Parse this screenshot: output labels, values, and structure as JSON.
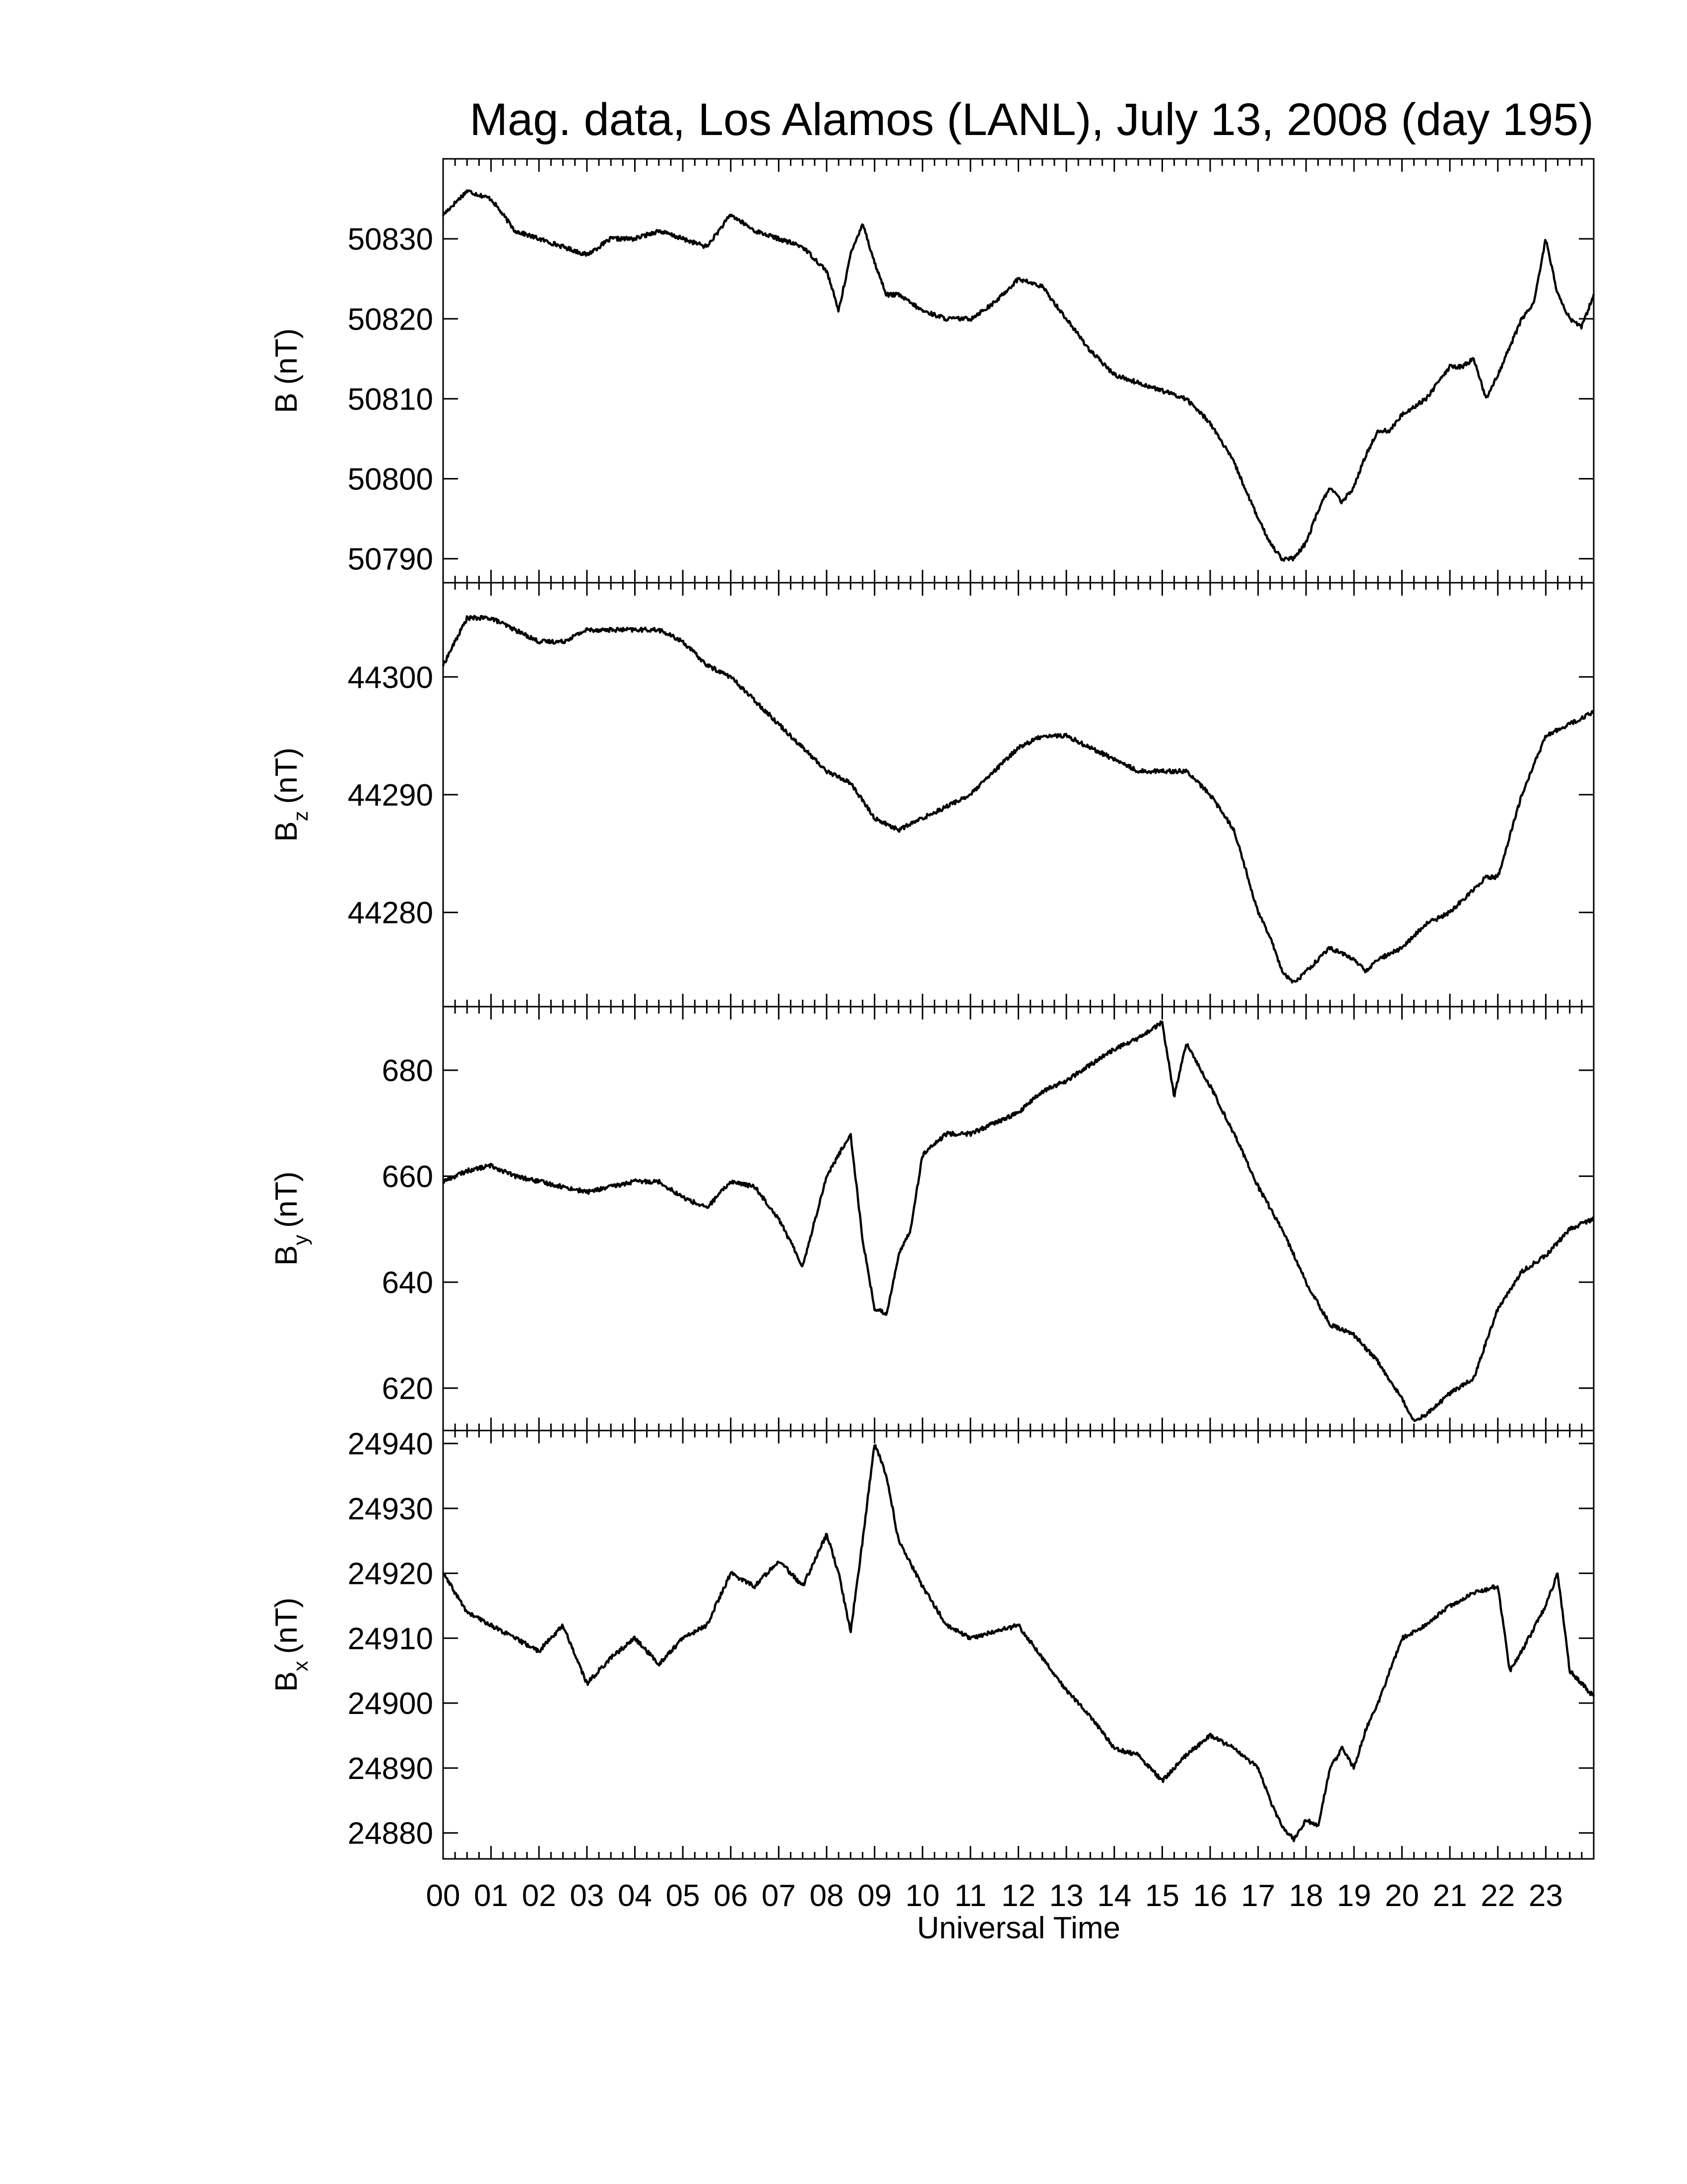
{
  "chart_data": {
    "type": "line",
    "title": "Mag. data, Los Alamos (LANL), July 13, 2008 (day 195)",
    "xlabel": "Universal Time",
    "x_tick_labels": [
      "00",
      "01",
      "02",
      "03",
      "04",
      "05",
      "06",
      "07",
      "08",
      "09",
      "10",
      "11",
      "12",
      "13",
      "14",
      "15",
      "16",
      "17",
      "18",
      "19",
      "20",
      "21",
      "22",
      "23"
    ],
    "xlim": [
      0,
      24
    ],
    "grid": false,
    "legend": "none",
    "line_color": "#000000",
    "panels": [
      {
        "ylabel_main": "B",
        "ylabel_sub": "",
        "ylabel_unit": "(nT)",
        "ylim": [
          50787,
          50840
        ],
        "yticks": [
          50790,
          50800,
          50810,
          50820,
          50830
        ],
        "series": {
          "x": [
            0,
            0.5,
            1,
            1.5,
            2,
            2.5,
            3,
            3.5,
            4,
            4.5,
            5,
            5.5,
            6,
            6.5,
            7,
            7.5,
            8,
            8.25,
            8.5,
            8.75,
            9,
            9.25,
            9.5,
            10,
            10.5,
            11,
            11.5,
            12,
            12.5,
            13,
            13.5,
            14,
            14.5,
            15,
            15.5,
            16,
            16.5,
            17,
            17.25,
            17.5,
            17.75,
            18,
            18.25,
            18.5,
            18.75,
            19,
            19.25,
            19.5,
            19.75,
            20,
            20.5,
            21,
            21.25,
            21.5,
            21.75,
            22,
            22.5,
            22.75,
            23,
            23.25,
            23.5,
            23.75,
            24
          ],
          "y": [
            50833,
            50836,
            50835,
            50831,
            50830,
            50829,
            50828,
            50830,
            50830,
            50831,
            50830,
            50829,
            50833,
            50831,
            50830,
            50829,
            50826,
            50821,
            50828,
            50832,
            50827,
            50823,
            50823,
            50821,
            50820,
            50820,
            50822,
            50825,
            50824,
            50820,
            50816,
            50813,
            50812,
            50811,
            50810,
            50807,
            50802,
            50795,
            50792,
            50790,
            50790,
            50792,
            50796,
            50799,
            50797,
            50799,
            50803,
            50806,
            50806,
            50808,
            50810,
            50814,
            50814,
            50815,
            50810,
            50813,
            50820,
            50822,
            50830,
            50823,
            50820,
            50819,
            50823
          ]
        }
      },
      {
        "ylabel_main": "B",
        "ylabel_sub": "z",
        "ylabel_unit": "(nT)",
        "ylim": [
          44272,
          44308
        ],
        "yticks": [
          44280,
          44290,
          44300
        ],
        "series": {
          "x": [
            0,
            0.5,
            1,
            1.5,
            2,
            2.5,
            3,
            3.5,
            4,
            4.5,
            5,
            5.5,
            6,
            6.5,
            7,
            7.5,
            8,
            8.5,
            9,
            9.5,
            10,
            10.5,
            11,
            11.5,
            12,
            12.5,
            13,
            13.5,
            14,
            14.5,
            15,
            15.5,
            16,
            16.5,
            17,
            17.25,
            17.5,
            17.75,
            18,
            18.25,
            18.5,
            19,
            19.25,
            19.5,
            20,
            20.5,
            21,
            21.25,
            21.5,
            21.75,
            22,
            22.5,
            23,
            23.5,
            24
          ],
          "y": [
            44301,
            44305,
            44305,
            44304,
            44303,
            44303,
            44304,
            44304,
            44304,
            44304,
            44303,
            44301,
            44300,
            44298,
            44296,
            44294,
            44292,
            44291,
            44288,
            44287,
            44288,
            44289,
            44290,
            44292,
            44294,
            44295,
            44295,
            44294,
            44293,
            44292,
            44292,
            44292,
            44290,
            44287,
            44280,
            44278,
            44275,
            44274,
            44275,
            44276,
            44277,
            44276,
            44275,
            44276,
            44277,
            44279,
            44280,
            44281,
            44282,
            44283,
            44283,
            44290,
            44295,
            44296,
            44297
          ]
        }
      },
      {
        "ylabel_main": "B",
        "ylabel_sub": "y",
        "ylabel_unit": "(nT)",
        "ylim": [
          612,
          692
        ],
        "yticks": [
          620,
          640,
          660,
          680
        ],
        "series": {
          "x": [
            0,
            0.5,
            1,
            1.5,
            2,
            2.5,
            3,
            3.5,
            4,
            4.5,
            5,
            5.5,
            6,
            6.5,
            7,
            7.5,
            8,
            8.25,
            8.5,
            8.75,
            9,
            9.25,
            9.5,
            9.75,
            10,
            10.5,
            11,
            11.5,
            12,
            12.5,
            13,
            13.5,
            14,
            14.5,
            15,
            15.25,
            15.5,
            16,
            16.5,
            17,
            17.5,
            18,
            18.5,
            19,
            19.5,
            20,
            20.25,
            20.5,
            21,
            21.5,
            22,
            22.5,
            23,
            23.5,
            24
          ],
          "y": [
            659,
            661,
            662,
            660,
            659,
            658,
            657,
            658,
            659,
            659,
            656,
            654,
            659,
            658,
            652,
            643,
            660,
            664,
            668,
            648,
            635,
            634,
            645,
            650,
            664,
            668,
            668,
            670,
            672,
            676,
            678,
            681,
            684,
            686,
            689,
            675,
            685,
            677,
            668,
            658,
            650,
            640,
            632,
            630,
            625,
            618,
            614,
            615,
            619,
            622,
            635,
            642,
            645,
            650,
            652
          ]
        }
      },
      {
        "ylabel_main": "B",
        "ylabel_sub": "x",
        "ylabel_unit": "(nT)",
        "ylim": [
          24876,
          24942
        ],
        "yticks": [
          24880,
          24890,
          24900,
          24910,
          24920,
          24930,
          24940
        ],
        "series": {
          "x": [
            0,
            0.5,
            1,
            1.5,
            2,
            2.5,
            3,
            3.5,
            4,
            4.5,
            5,
            5.5,
            6,
            6.5,
            7,
            7.5,
            8,
            8.25,
            8.5,
            8.75,
            9,
            9.25,
            9.5,
            10,
            10.5,
            11,
            11.5,
            12,
            12.5,
            13,
            13.5,
            14,
            14.5,
            15,
            15.5,
            16,
            16.5,
            17,
            17.25,
            17.5,
            17.75,
            18,
            18.25,
            18.5,
            18.75,
            19,
            19.25,
            19.5,
            20,
            20.5,
            21,
            21.5,
            22,
            22.25,
            22.5,
            23,
            23.25,
            23.5,
            24
          ],
          "y": [
            24920,
            24914,
            24912,
            24910,
            24908,
            24912,
            24903,
            24907,
            24910,
            24906,
            24910,
            24912,
            24920,
            24918,
            24922,
            24918,
            24926,
            24920,
            24911,
            24925,
            24940,
            24935,
            24925,
            24918,
            24912,
            24910,
            24911,
            24912,
            24907,
            24902,
            24898,
            24893,
            24892,
            24888,
            24892,
            24895,
            24893,
            24890,
            24885,
            24881,
            24879,
            24882,
            24881,
            24890,
            24893,
            24890,
            24896,
            24900,
            24910,
            24912,
            24915,
            24917,
            24918,
            24905,
            24908,
            24915,
            24920,
            24905,
            24901
          ]
        }
      }
    ]
  }
}
